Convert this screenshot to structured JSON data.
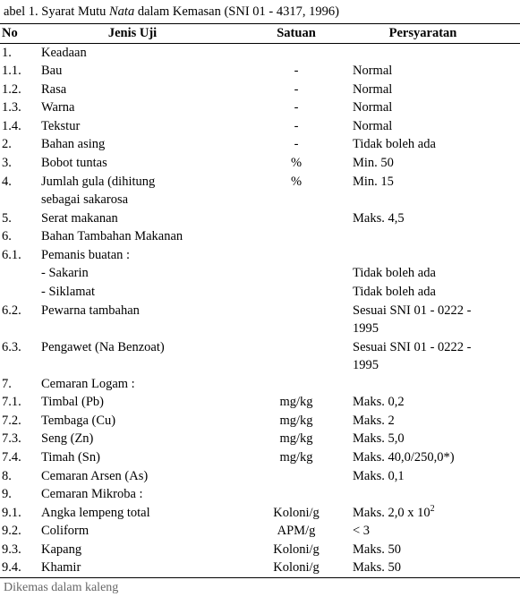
{
  "caption_prefix": "abel 1. Syarat Mutu ",
  "caption_italic": "Nata",
  "caption_suffix": " dalam Kemasan (SNI 01 - 4317, 1996)",
  "headers": {
    "no": "No",
    "jenis": "Jenis Uji",
    "satuan": "Satuan",
    "persy": "Persyaratan"
  },
  "rows": [
    {
      "no": "1.",
      "jenis": "Keadaan",
      "satuan": "",
      "persy": ""
    },
    {
      "no": "1.1.",
      "jenis": "Bau",
      "satuan": "-",
      "persy": "Normal"
    },
    {
      "no": "1.2.",
      "jenis": "Rasa",
      "satuan": "-",
      "persy": "Normal"
    },
    {
      "no": "1.3.",
      "jenis": "Warna",
      "satuan": "-",
      "persy": "Normal"
    },
    {
      "no": "1.4.",
      "jenis": "Tekstur",
      "satuan": "-",
      "persy": "Normal"
    },
    {
      "no": "2.",
      "jenis": "Bahan asing",
      "satuan": "-",
      "persy": "Tidak boleh ada"
    },
    {
      "no": "3.",
      "jenis": "Bobot tuntas",
      "satuan": "%",
      "persy": "Min. 50"
    },
    {
      "no": "4.",
      "jenis": "Jumlah gula (dihitung",
      "satuan": "%",
      "persy": "Min. 15"
    },
    {
      "no": "",
      "jenis": "sebagai sakarosa",
      "satuan": "",
      "persy": ""
    },
    {
      "no": "5.",
      "jenis": "Serat makanan",
      "satuan": "",
      "persy": "Maks. 4,5"
    },
    {
      "no": "6.",
      "jenis": "Bahan Tambahan Makanan",
      "satuan": "",
      "persy": ""
    },
    {
      "no": "6.1.",
      "jenis": "Pemanis buatan :",
      "satuan": "",
      "persy": ""
    },
    {
      "no": "",
      "jenis": "- Sakarin",
      "satuan": "",
      "persy": "Tidak boleh ada"
    },
    {
      "no": "",
      "jenis": "- Siklamat",
      "satuan": "",
      "persy": "Tidak boleh ada"
    },
    {
      "no": "6.2.",
      "jenis": "Pewarna tambahan",
      "satuan": "",
      "persy": "Sesuai SNI 01 - 0222 -"
    },
    {
      "no": "",
      "jenis": "",
      "satuan": "",
      "persy": "1995"
    },
    {
      "no": "6.3.",
      "jenis": "Pengawet (Na Benzoat)",
      "satuan": "",
      "persy": "Sesuai SNI 01 - 0222 -"
    },
    {
      "no": "",
      "jenis": "",
      "satuan": "",
      "persy": "1995"
    },
    {
      "no": "7.",
      "jenis": "Cemaran Logam :",
      "satuan": "",
      "persy": ""
    },
    {
      "no": "7.1.",
      "jenis": "Timbal (Pb)",
      "satuan": "mg/kg",
      "persy": "Maks. 0,2"
    },
    {
      "no": "7.2.",
      "jenis": "Tembaga (Cu)",
      "satuan": "mg/kg",
      "persy": "Maks. 2"
    },
    {
      "no": "7.3.",
      "jenis": "Seng (Zn)",
      "satuan": "mg/kg",
      "persy": "Maks. 5,0"
    },
    {
      "no": "7.4.",
      "jenis": "Timah (Sn)",
      "satuan": "mg/kg",
      "persy": "Maks. 40,0/250,0*)"
    },
    {
      "no": "8.",
      "jenis": "Cemaran Arsen (As)",
      "satuan": "",
      "persy": "Maks. 0,1"
    },
    {
      "no": "9.",
      "jenis": "Cemaran Mikroba :",
      "satuan": "",
      "persy": ""
    },
    {
      "no": "9.1.",
      "jenis": "Angka lempeng total",
      "satuan": "Koloni/g",
      "persy": "Maks. 2,0 x 10",
      "sup": "2"
    },
    {
      "no": "9.2.",
      "jenis": "Coliform",
      "satuan": "APM/g",
      "persy": "< 3"
    },
    {
      "no": "9.3.",
      "jenis": "Kapang",
      "satuan": "Koloni/g",
      "persy": "Maks. 50"
    },
    {
      "no": "9.4.",
      "jenis": "Khamir",
      "satuan": "Koloni/g",
      "persy": "Maks. 50"
    }
  ],
  "footnote": "Dikemas dalam kaleng"
}
